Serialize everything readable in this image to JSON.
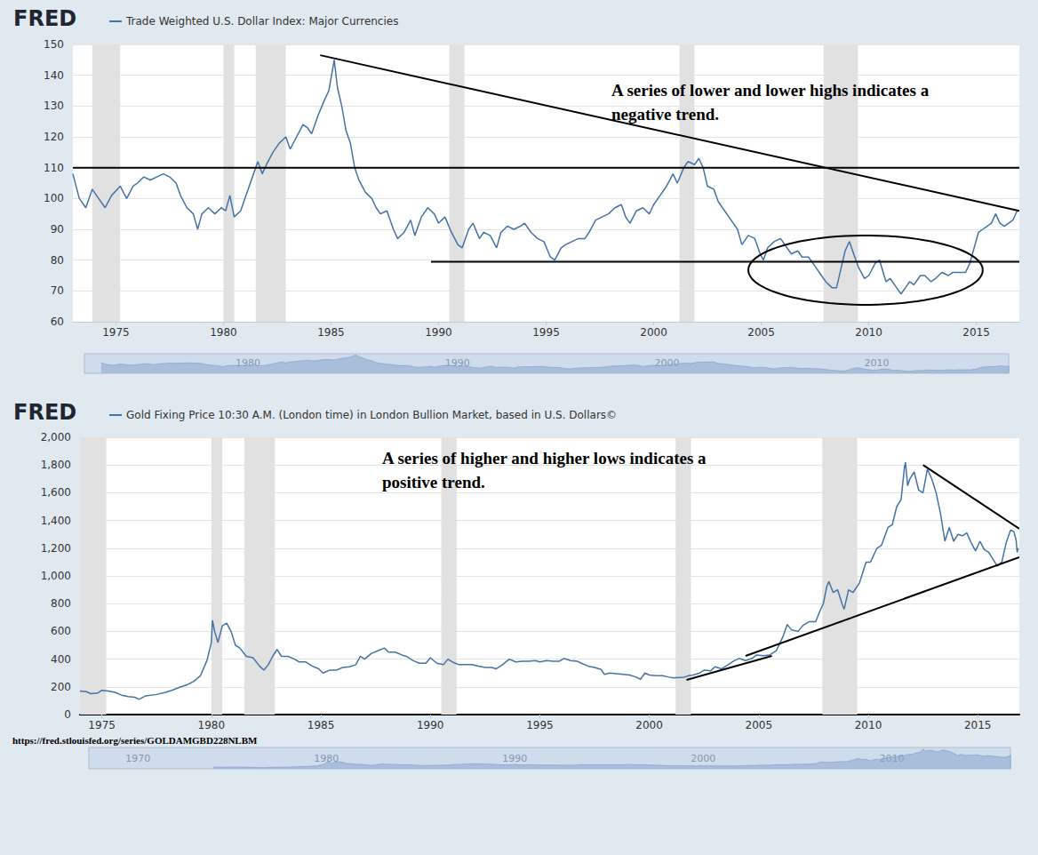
{
  "chart_data": [
    {
      "type": "line",
      "title": "FRED",
      "annotation": [
        "A series of lower and lower highs indicates a",
        "negative trend."
      ],
      "x": [
        1973.0,
        1973.3,
        1973.6,
        1973.9,
        1974.2,
        1974.5,
        1974.8,
        1975.2,
        1975.5,
        1975.8,
        1976.0,
        1976.3,
        1976.6,
        1976.9,
        1977.2,
        1977.5,
        1977.8,
        1978.0,
        1978.3,
        1978.6,
        1978.8,
        1979.0,
        1979.3,
        1979.6,
        1979.9,
        1980.1,
        1980.3,
        1980.5,
        1980.8,
        1981.0,
        1981.3,
        1981.6,
        1981.8,
        1982.0,
        1982.3,
        1982.6,
        1982.9,
        1983.1,
        1983.4,
        1983.7,
        1983.9,
        1984.1,
        1984.4,
        1984.7,
        1984.9,
        1985.1,
        1985.15,
        1985.3,
        1985.5,
        1985.7,
        1985.9,
        1986.1,
        1986.3,
        1986.6,
        1986.9,
        1987.1,
        1987.3,
        1987.6,
        1987.9,
        1988.1,
        1988.4,
        1988.7,
        1988.9,
        1989.2,
        1989.5,
        1989.8,
        1990.0,
        1990.3,
        1990.6,
        1990.9,
        1991.1,
        1991.4,
        1991.6,
        1991.9,
        1992.1,
        1992.4,
        1992.7,
        1992.9,
        1993.2,
        1993.5,
        1993.8,
        1994.0,
        1994.3,
        1994.6,
        1994.9,
        1995.2,
        1995.4,
        1995.7,
        1995.9,
        1996.2,
        1996.5,
        1996.8,
        1997.0,
        1997.3,
        1997.6,
        1997.9,
        1998.2,
        1998.5,
        1998.7,
        1998.9,
        1999.2,
        1999.5,
        1999.8,
        2000.0,
        2000.3,
        2000.6,
        2000.9,
        2001.1,
        2001.4,
        2001.6,
        2001.9,
        2002.1,
        2002.3,
        2002.5,
        2002.8,
        2003.0,
        2003.3,
        2003.6,
        2003.9,
        2004.1,
        2004.4,
        2004.7,
        2004.95,
        2005.1,
        2005.3,
        2005.6,
        2005.9,
        2006.1,
        2006.4,
        2006.7,
        2006.9,
        2007.2,
        2007.5,
        2007.8,
        2008.0,
        2008.3,
        2008.5,
        2008.7,
        2008.9,
        2009.1,
        2009.3,
        2009.5,
        2009.8,
        2010.0,
        2010.3,
        2010.5,
        2010.8,
        2011.0,
        2011.3,
        2011.5,
        2011.7,
        2011.9,
        2012.1,
        2012.4,
        2012.6,
        2012.9,
        2013.1,
        2013.4,
        2013.7,
        2013.9,
        2014.2,
        2014.5,
        2014.7,
        2014.9,
        2015.1,
        2015.3,
        2015.5,
        2015.7,
        2015.9,
        2016.1,
        2016.3,
        2016.5,
        2016.7,
        2016.9
      ],
      "series": [
        {
          "name": "Trade Weighted U.S. Dollar Index: Major Currencies",
          "color": "#4572a7",
          "values": [
            108,
            100,
            97,
            103,
            100,
            97,
            101,
            104,
            100,
            104,
            105,
            107,
            106,
            107,
            108,
            107,
            105,
            101,
            97,
            95,
            90,
            95,
            97,
            95,
            97,
            96,
            101,
            94,
            96,
            100,
            106,
            112,
            108,
            111,
            115,
            118,
            120,
            116,
            120,
            124,
            123,
            121,
            127,
            132,
            135,
            143,
            145,
            136,
            130,
            122,
            118,
            110,
            106,
            102,
            100,
            97,
            95,
            96,
            90,
            87,
            89,
            93,
            88,
            94,
            97,
            95,
            92,
            94,
            89,
            85,
            84,
            90,
            92,
            87,
            89,
            88,
            84,
            89,
            91,
            90,
            91,
            92,
            89,
            87,
            86,
            81,
            80,
            84,
            85,
            86,
            87,
            87,
            89,
            93,
            94,
            95,
            97,
            98,
            94,
            92,
            96,
            97,
            95,
            98,
            101,
            104,
            108,
            105,
            110,
            112,
            111,
            113,
            110,
            104,
            103,
            99,
            96,
            93,
            90,
            85,
            88,
            87,
            82,
            80,
            84,
            86,
            87,
            85,
            82,
            83,
            81,
            81,
            78,
            75,
            73,
            71,
            71,
            77,
            83,
            86,
            82,
            78,
            74,
            75,
            79,
            80,
            73,
            74,
            71,
            69,
            71,
            73,
            72,
            75,
            75,
            73,
            74,
            76,
            75,
            76,
            76,
            76,
            79,
            84,
            89,
            90,
            91,
            92,
            95,
            92,
            91,
            92,
            93,
            96
          ]
        }
      ],
      "xlim": [
        1973.0,
        2017.0
      ],
      "xticks": [
        1975,
        1980,
        1985,
        1990,
        1995,
        2000,
        2005,
        2010,
        2015
      ],
      "ylim": [
        60,
        150
      ],
      "yticks": [
        60,
        70,
        80,
        90,
        100,
        110,
        120,
        130,
        140,
        150
      ],
      "grid": true,
      "legend": "top-left",
      "recessions": [
        [
          1973.9,
          1975.2
        ],
        [
          1980.0,
          1980.5
        ],
        [
          1981.5,
          1982.9
        ],
        [
          1990.5,
          1991.2
        ],
        [
          2001.2,
          2001.9
        ],
        [
          2007.9,
          2009.5
        ]
      ],
      "trend_lines": [
        [
          [
            1984.5,
            146.5
          ],
          [
            2017.0,
            96
          ]
        ],
        [
          [
            1973.0,
            110
          ],
          [
            2017.0,
            110
          ]
        ],
        [
          [
            1989.65,
            79.5
          ],
          [
            2017.0,
            79.5
          ]
        ]
      ],
      "ellipse": {
        "center": [
          2009.85,
          76.75
        ],
        "radii": [
          5.45,
          11.25
        ]
      },
      "navigator": {
        "xlim": [
          1972.2,
          2016.3
        ],
        "xticks": [
          1980,
          1990,
          2000,
          2010
        ]
      }
    },
    {
      "type": "line",
      "title": "FRED",
      "annotation": [
        "A series of higher and higher lows indicates a",
        "positive trend."
      ],
      "source_url": "https://fred.stlouisfed.org/series/GOLDAMGBD228NLBM",
      "x": [
        1974.0,
        1974.3,
        1974.5,
        1974.8,
        1975.0,
        1975.3,
        1975.6,
        1975.9,
        1976.2,
        1976.5,
        1976.7,
        1977.0,
        1977.5,
        1977.9,
        1978.2,
        1978.6,
        1978.9,
        1979.2,
        1979.5,
        1979.8,
        1980.0,
        1980.05,
        1980.15,
        1980.3,
        1980.5,
        1980.7,
        1980.9,
        1981.1,
        1981.3,
        1981.6,
        1981.9,
        1982.2,
        1982.4,
        1982.6,
        1982.8,
        1983.0,
        1983.2,
        1983.5,
        1983.8,
        1984.0,
        1984.3,
        1984.6,
        1984.9,
        1985.1,
        1985.4,
        1985.7,
        1986.0,
        1986.3,
        1986.6,
        1986.8,
        1987.0,
        1987.3,
        1987.6,
        1987.9,
        1988.1,
        1988.4,
        1988.7,
        1988.9,
        1989.2,
        1989.5,
        1989.8,
        1990.0,
        1990.3,
        1990.6,
        1990.8,
        1991.0,
        1991.3,
        1991.6,
        1991.9,
        1992.2,
        1992.5,
        1992.8,
        1993.0,
        1993.3,
        1993.6,
        1993.9,
        1994.2,
        1994.5,
        1994.8,
        1995.0,
        1995.3,
        1995.6,
        1995.9,
        1996.1,
        1996.4,
        1996.7,
        1996.9,
        1997.2,
        1997.5,
        1997.8,
        1997.95,
        1998.2,
        1998.5,
        1998.8,
        1999.1,
        1999.4,
        1999.6,
        1999.8,
        2000.0,
        2000.3,
        2000.6,
        2000.9,
        2001.1,
        2001.4,
        2001.6,
        2001.8,
        2002.0,
        2002.3,
        2002.5,
        2002.8,
        2003.0,
        2003.3,
        2003.6,
        2003.9,
        2004.1,
        2004.4,
        2004.7,
        2004.9,
        2005.2,
        2005.5,
        2005.8,
        2005.95,
        2006.1,
        2006.3,
        2006.5,
        2006.8,
        2007.0,
        2007.3,
        2007.6,
        2007.8,
        2007.95,
        2008.1,
        2008.2,
        2008.4,
        2008.6,
        2008.8,
        2008.9,
        2009.1,
        2009.3,
        2009.6,
        2009.9,
        2010.1,
        2010.4,
        2010.6,
        2010.9,
        2011.1,
        2011.3,
        2011.5,
        2011.65,
        2011.7,
        2011.8,
        2011.9,
        2012.1,
        2012.3,
        2012.5,
        2012.7,
        2012.9,
        2013.1,
        2013.3,
        2013.5,
        2013.7,
        2013.9,
        2014.1,
        2014.3,
        2014.5,
        2014.7,
        2014.9,
        2015.1,
        2015.3,
        2015.5,
        2015.7,
        2015.9,
        2016.1,
        2016.3,
        2016.5,
        2016.65,
        2016.75,
        2016.8,
        2016.85
      ],
      "series": [
        {
          "name": "Gold Fixing Price 10:30 A.M. (London time) in London Bullion Market, based in U.S. Dollars©",
          "color": "#4572a7",
          "values": [
            170,
            165,
            150,
            155,
            175,
            170,
            160,
            140,
            130,
            125,
            110,
            135,
            145,
            160,
            175,
            200,
            215,
            240,
            280,
            390,
            520,
            680,
            600,
            520,
            640,
            660,
            600,
            500,
            480,
            420,
            410,
            350,
            320,
            360,
            420,
            470,
            420,
            420,
            400,
            380,
            380,
            350,
            330,
            300,
            320,
            320,
            340,
            345,
            360,
            420,
            400,
            440,
            460,
            480,
            450,
            450,
            430,
            420,
            390,
            370,
            370,
            410,
            370,
            360,
            400,
            380,
            360,
            360,
            360,
            350,
            340,
            340,
            330,
            360,
            400,
            380,
            385,
            385,
            390,
            380,
            390,
            385,
            385,
            405,
            390,
            385,
            370,
            350,
            340,
            325,
            290,
            300,
            295,
            290,
            285,
            270,
            255,
            300,
            285,
            280,
            280,
            270,
            265,
            268,
            270,
            280,
            285,
            300,
            320,
            315,
            345,
            330,
            360,
            390,
            405,
            390,
            405,
            430,
            425,
            430,
            460,
            510,
            560,
            650,
            610,
            600,
            640,
            670,
            670,
            750,
            800,
            920,
            960,
            880,
            900,
            800,
            760,
            900,
            880,
            950,
            1100,
            1100,
            1200,
            1220,
            1350,
            1370,
            1500,
            1550,
            1780,
            1820,
            1650,
            1700,
            1750,
            1620,
            1600,
            1770,
            1700,
            1600,
            1450,
            1250,
            1350,
            1250,
            1300,
            1290,
            1310,
            1240,
            1180,
            1250,
            1190,
            1170,
            1120,
            1070,
            1100,
            1240,
            1330,
            1320,
            1260,
            1170,
            1200
          ]
        }
      ],
      "xlim": [
        1974.0,
        2016.9
      ],
      "xticks": [
        1975,
        1980,
        1985,
        1990,
        1995,
        2000,
        2005,
        2010,
        2015
      ],
      "ylim": [
        0,
        2000
      ],
      "yticks": [
        0,
        200,
        400,
        600,
        800,
        {
          "value": 1000,
          "label": "1,000"
        },
        {
          "value": 1200,
          "label": "1,200"
        },
        {
          "value": 1400,
          "label": "1,400"
        },
        {
          "value": 1600,
          "label": "1,600"
        },
        {
          "value": 1800,
          "label": "1,800"
        },
        {
          "value": 2000,
          "label": "2,000"
        }
      ],
      "grid": true,
      "legend": "top-left",
      "recessions": [
        [
          1973.9,
          1975.2
        ],
        [
          1980.0,
          1980.5
        ],
        [
          1981.5,
          1982.9
        ],
        [
          1990.5,
          1991.2
        ],
        [
          2001.2,
          2001.9
        ],
        [
          2007.9,
          2009.5
        ]
      ],
      "trend_lines": [
        [
          [
            2001.7,
            250
          ],
          [
            2005.6,
            423
          ]
        ],
        [
          [
            2004.4,
            423
          ],
          [
            2016.9,
            1135
          ]
        ],
        [
          [
            2012.5,
            1800
          ],
          [
            2016.9,
            1340
          ]
        ]
      ],
      "navigator": {
        "xlim": [
          1967.4,
          2016.3
        ],
        "xticks": [
          1970,
          1980,
          1990,
          2000,
          2010
        ]
      }
    }
  ]
}
